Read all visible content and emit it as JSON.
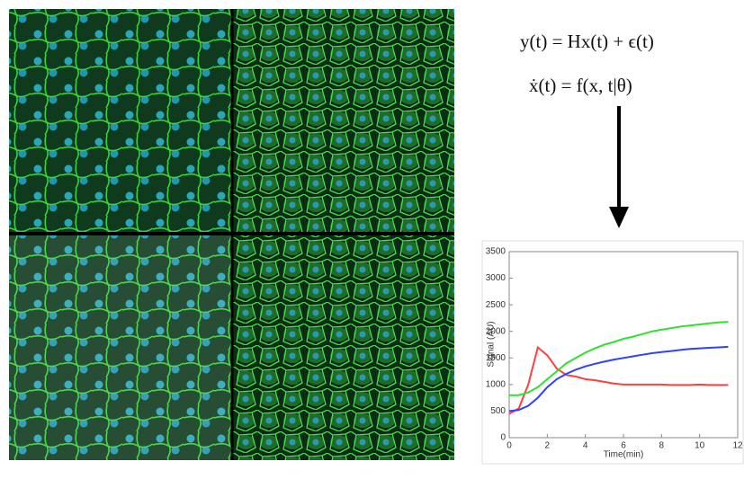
{
  "equations": [
    "y(t) = Hx(t) + ϵ(t)",
    "ẋ(t) = f(x, t|θ)"
  ],
  "chart_data": {
    "type": "line",
    "x_label": "Time(min)",
    "y_label": "Signal (AU)",
    "x": [
      0,
      0.5,
      1,
      1.5,
      2,
      2.5,
      3,
      3.5,
      4,
      4.5,
      5,
      5.5,
      6,
      6.5,
      7,
      7.5,
      8,
      8.5,
      9,
      9.5,
      10,
      10.5,
      11,
      11.5
    ],
    "series": [
      {
        "color": "#ff4040",
        "values": [
          450,
          550,
          1000,
          1700,
          1550,
          1300,
          1180,
          1150,
          1100,
          1080,
          1050,
          1020,
          1000,
          1000,
          1000,
          1000,
          1000,
          990,
          990,
          990,
          1000,
          990,
          990,
          990
        ]
      },
      {
        "color": "#30e030",
        "values": [
          800,
          800,
          850,
          950,
          1100,
          1250,
          1400,
          1500,
          1600,
          1680,
          1750,
          1800,
          1860,
          1900,
          1950,
          2000,
          2030,
          2060,
          2090,
          2110,
          2130,
          2150,
          2170,
          2180
        ]
      },
      {
        "color": "#3040ff",
        "values": [
          500,
          520,
          600,
          750,
          950,
          1100,
          1200,
          1280,
          1340,
          1390,
          1430,
          1470,
          1500,
          1530,
          1560,
          1590,
          1610,
          1630,
          1650,
          1670,
          1680,
          1690,
          1700,
          1710
        ]
      }
    ],
    "xlim": [
      0,
      12
    ],
    "xticks": [
      0,
      2,
      4,
      6,
      8,
      10,
      12
    ],
    "ylim": [
      0,
      3500
    ],
    "yticks": [
      0,
      500,
      1000,
      1500,
      2000,
      2500,
      3000,
      3500
    ]
  }
}
